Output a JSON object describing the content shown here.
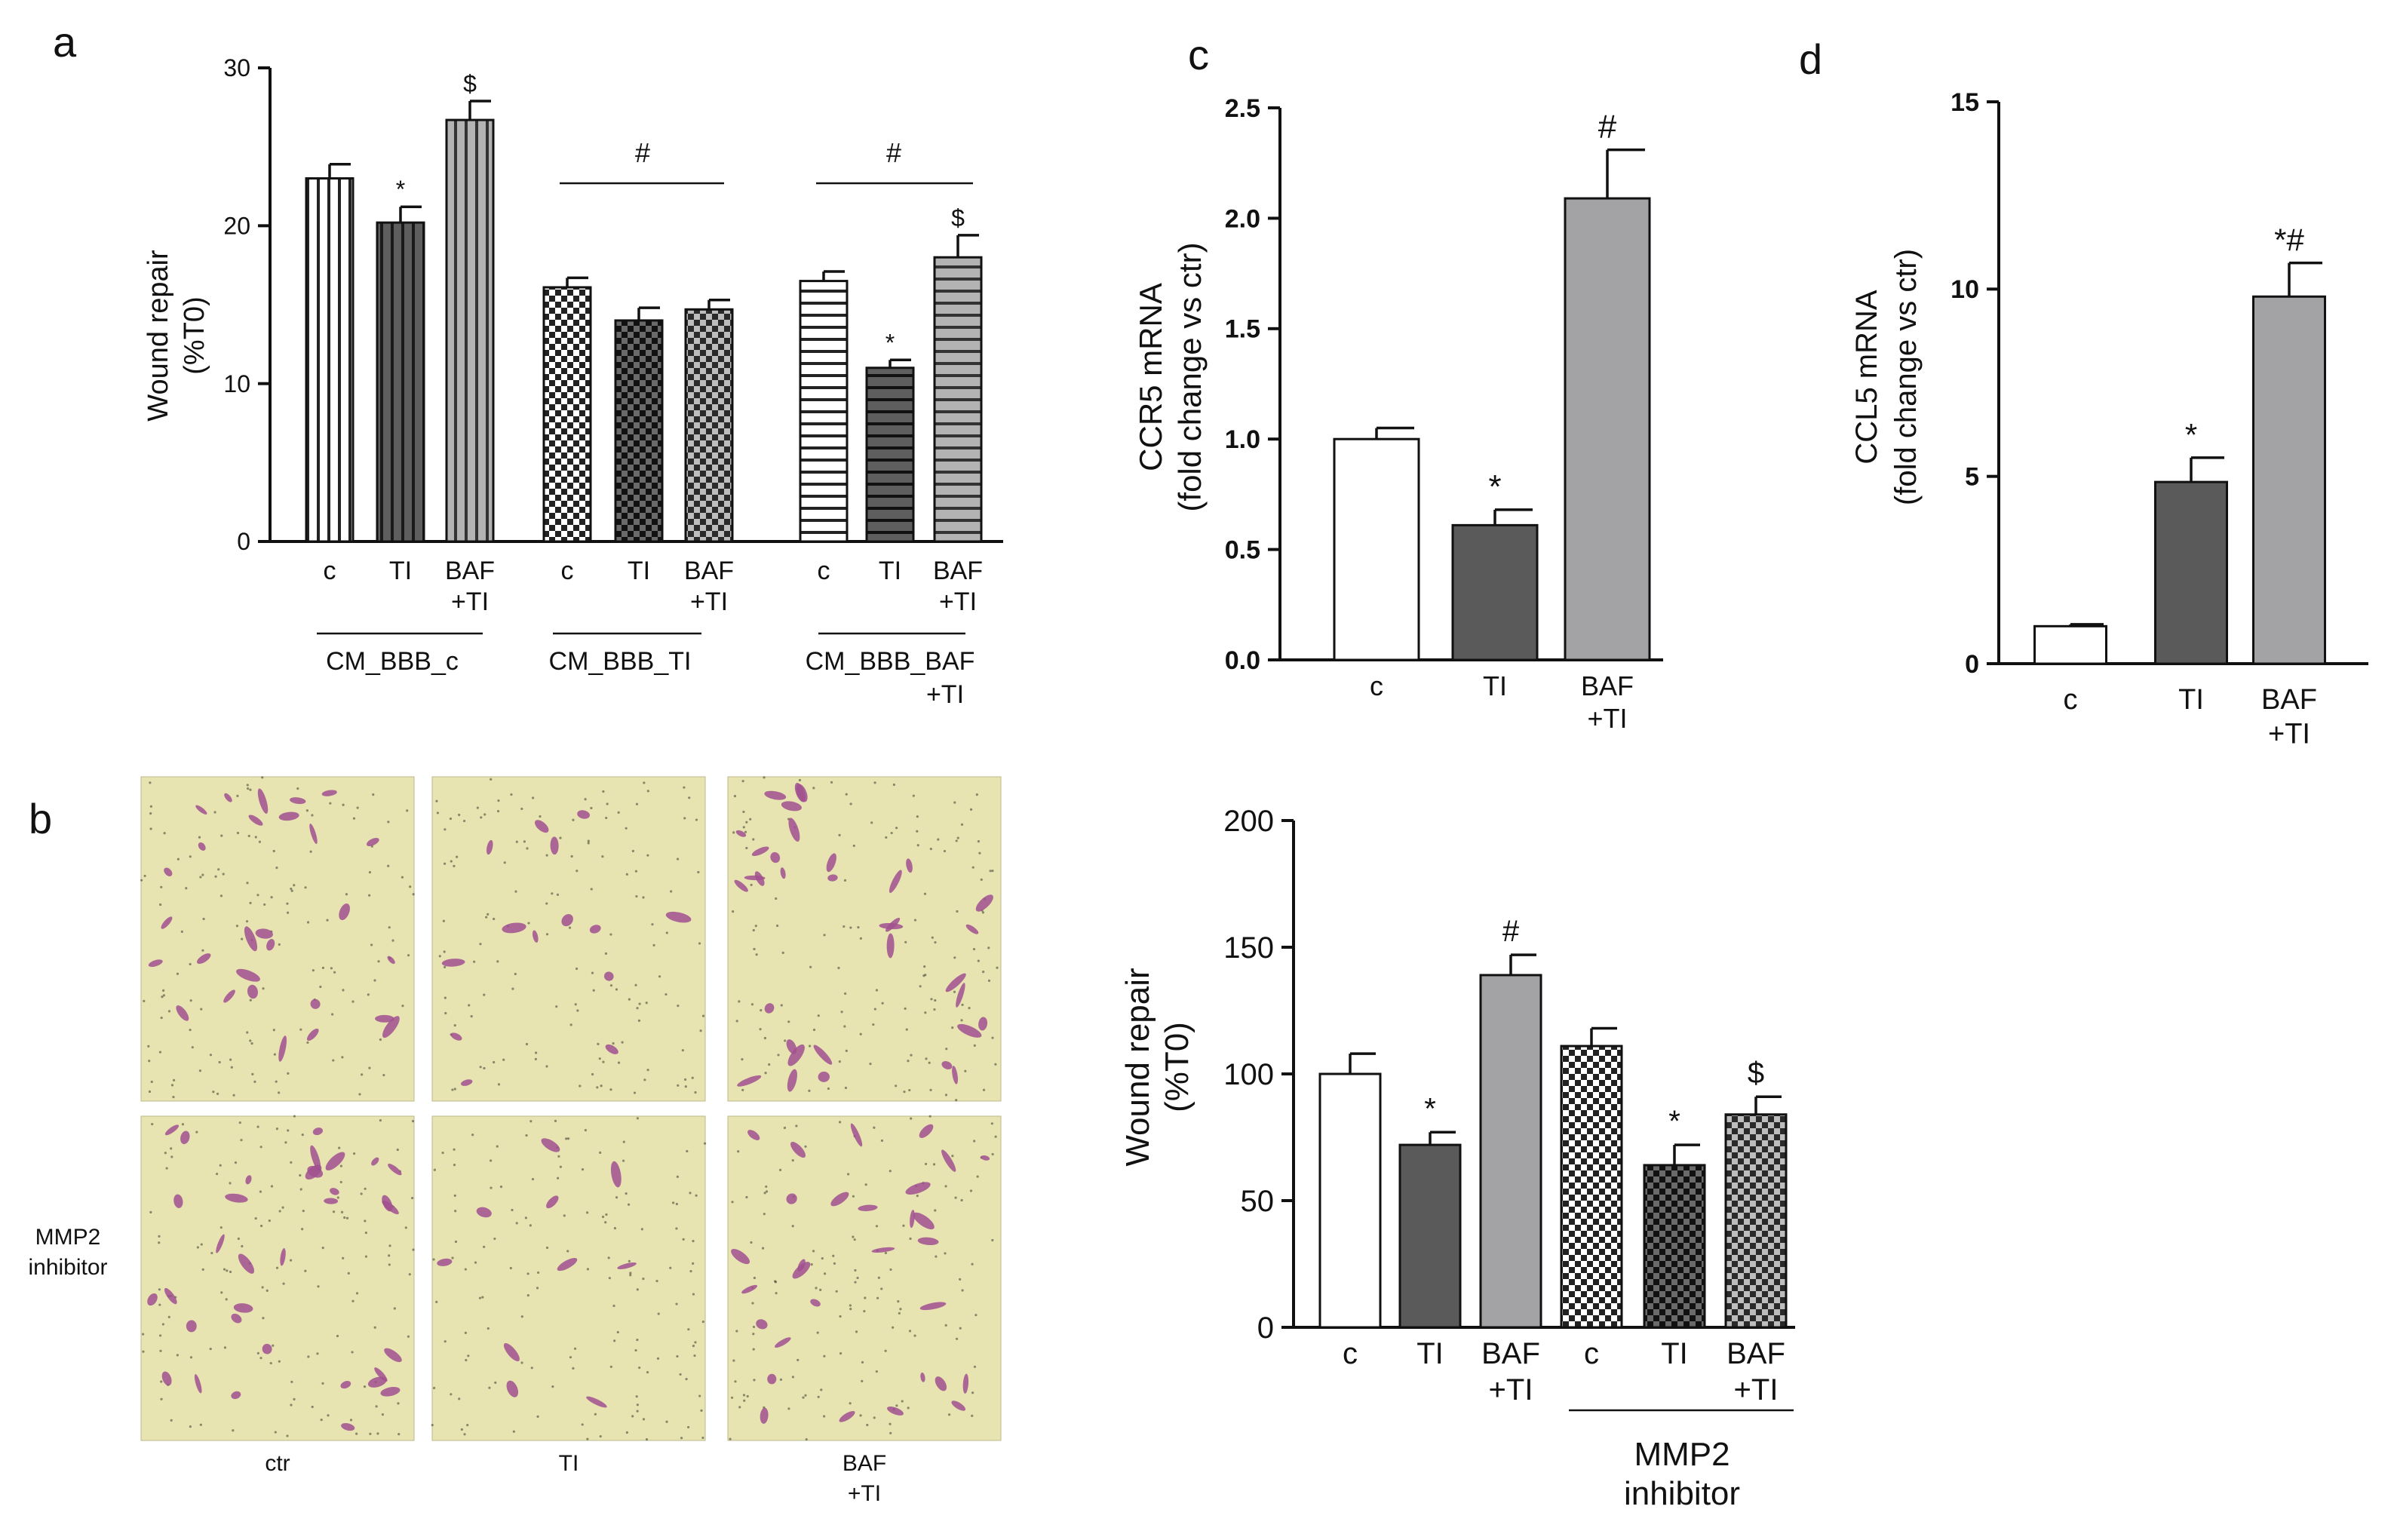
{
  "panels": {
    "a": {
      "letter": "a",
      "chart_data": {
        "type": "bar",
        "ylabel_line1": "Wound repair",
        "ylabel_line2": "(%T0)",
        "ylim": [
          0,
          30
        ],
        "yticks": [
          0,
          10,
          20,
          30
        ],
        "groups": [
          {
            "label": "CM_BBB_c",
            "label2": ""
          },
          {
            "label": "CM_BBB_TI",
            "label2": "",
            "annotation": "#"
          },
          {
            "label": "CM_BBB_BAF",
            "label2": "+TI",
            "annotation": "#"
          }
        ],
        "bars": [
          {
            "group": 0,
            "cat": "c",
            "cat2": "",
            "value": 23.0,
            "err": 0.9,
            "sig": "",
            "fill": "vstripe"
          },
          {
            "group": 0,
            "cat": "TI",
            "cat2": "",
            "value": 20.2,
            "err": 1.0,
            "sig": "*",
            "fill": "dark-vstripe"
          },
          {
            "group": 0,
            "cat": "BAF",
            "cat2": "+TI",
            "value": 26.7,
            "err": 1.2,
            "sig": "$",
            "fill": "grey-vstripe"
          },
          {
            "group": 1,
            "cat": "c",
            "cat2": "",
            "value": 16.1,
            "err": 0.6,
            "sig": "",
            "fill": "checker"
          },
          {
            "group": 1,
            "cat": "TI",
            "cat2": "",
            "value": 14.0,
            "err": 0.8,
            "sig": "",
            "fill": "dark-checker"
          },
          {
            "group": 1,
            "cat": "BAF",
            "cat2": "+TI",
            "value": 14.7,
            "err": 0.6,
            "sig": "",
            "fill": "grey-checker"
          },
          {
            "group": 2,
            "cat": "c",
            "cat2": "",
            "value": 16.5,
            "err": 0.6,
            "sig": "",
            "fill": "hstripe"
          },
          {
            "group": 2,
            "cat": "TI",
            "cat2": "",
            "value": 11.0,
            "err": 0.5,
            "sig": "*",
            "fill": "dark-hstripe"
          },
          {
            "group": 2,
            "cat": "BAF",
            "cat2": "+TI",
            "value": 18.0,
            "err": 1.4,
            "sig": "$",
            "fill": "grey-hstripe"
          }
        ]
      }
    },
    "b": {
      "letter": "b",
      "row_label_line1": "MMP2",
      "row_label_line2": "inhibitor",
      "columns": [
        {
          "line1": "ctr",
          "line2": ""
        },
        {
          "line1": "TI",
          "line2": ""
        },
        {
          "line1": "BAF",
          "line2": "+TI"
        }
      ],
      "micrograph_colors": {
        "background": "#e7e4b2",
        "cell": "#a0508f"
      },
      "chart_data": {
        "type": "bar",
        "ylabel_line1": "Wound repair",
        "ylabel_line2": "(%T0)",
        "ylim": [
          0,
          200
        ],
        "yticks": [
          0,
          50,
          100,
          150,
          200
        ],
        "group_label_line1": "MMP2",
        "group_label_line2": "inhibitor",
        "bars": [
          {
            "cat": "c",
            "cat2": "",
            "value": 100,
            "err": 8,
            "sig": "",
            "fill": "white"
          },
          {
            "cat": "TI",
            "cat2": "",
            "value": 72,
            "err": 5,
            "sig": "*",
            "fill": "dark"
          },
          {
            "cat": "BAF",
            "cat2": "+TI",
            "value": 139,
            "err": 8,
            "sig": "#",
            "fill": "grey"
          },
          {
            "cat": "c",
            "cat2": "",
            "value": 111,
            "err": 7,
            "sig": "",
            "fill": "checker"
          },
          {
            "cat": "TI",
            "cat2": "",
            "value": 64,
            "err": 8,
            "sig": "*",
            "fill": "dark-checker"
          },
          {
            "cat": "BAF",
            "cat2": "+TI",
            "value": 84,
            "err": 7,
            "sig": "$",
            "fill": "grey-checker"
          }
        ]
      }
    },
    "c": {
      "letter": "c",
      "chart_data": {
        "type": "bar",
        "ylabel_line1": "CCR5 mRNA",
        "ylabel_line2": "(fold change vs ctr)",
        "ylim": [
          0,
          2.5
        ],
        "yticks": [
          "0.0",
          "0.5",
          "1.0",
          "1.5",
          "2.0",
          "2.5"
        ],
        "bars": [
          {
            "cat": "c",
            "cat2": "",
            "value": 1.0,
            "err": 0.05,
            "sig": "",
            "fill": "white"
          },
          {
            "cat": "TI",
            "cat2": "",
            "value": 0.61,
            "err": 0.07,
            "sig": "*",
            "fill": "dark"
          },
          {
            "cat": "BAF",
            "cat2": "+TI",
            "value": 2.09,
            "err": 0.22,
            "sig": "#",
            "fill": "grey"
          }
        ]
      }
    },
    "d": {
      "letter": "d",
      "chart_data": {
        "type": "bar",
        "ylabel_line1": "CCL5 mRNA",
        "ylabel_line2": "(fold change vs ctr)",
        "ylim": [
          0,
          15
        ],
        "yticks": [
          "0",
          "5",
          "10",
          "15"
        ],
        "bars": [
          {
            "cat": "c",
            "cat2": "",
            "value": 1.0,
            "err": 0.05,
            "sig": "",
            "fill": "white"
          },
          {
            "cat": "TI",
            "cat2": "",
            "value": 4.85,
            "err": 0.65,
            "sig": "*",
            "fill": "dark"
          },
          {
            "cat": "BAF",
            "cat2": "+TI",
            "value": 9.8,
            "err": 0.9,
            "sig": "*#",
            "fill": "grey"
          }
        ]
      }
    }
  }
}
